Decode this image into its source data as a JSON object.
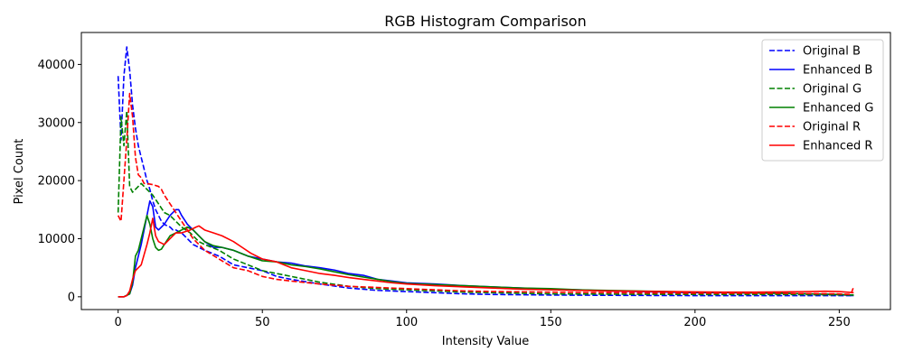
{
  "chart_data": {
    "type": "line",
    "title": "RGB Histogram Comparison",
    "xlabel": "Intensity Value",
    "ylabel": "Pixel Count",
    "xlim": [
      -12.75,
      267.75
    ],
    "ylim": [
      -2200,
      45500
    ],
    "x_ticks": [
      0,
      50,
      100,
      150,
      200,
      250
    ],
    "y_ticks": [
      0,
      10000,
      20000,
      30000,
      40000
    ],
    "grid": false,
    "legend_position": "top-right",
    "series": [
      {
        "name": "Original B",
        "color": "#0000ff",
        "style": "dashed",
        "points": [
          [
            0,
            38000
          ],
          [
            1,
            27000
          ],
          [
            2,
            38000
          ],
          [
            3,
            43000
          ],
          [
            4,
            39000
          ],
          [
            5,
            33000
          ],
          [
            6,
            29000
          ],
          [
            7,
            26000
          ],
          [
            8,
            24000
          ],
          [
            9,
            22000
          ],
          [
            10,
            20000
          ],
          [
            11,
            18500
          ],
          [
            12,
            16500
          ],
          [
            13,
            15000
          ],
          [
            14,
            14000
          ],
          [
            15,
            13000
          ],
          [
            16,
            12500
          ],
          [
            17,
            12200
          ],
          [
            18,
            12000
          ],
          [
            19,
            11500
          ],
          [
            20,
            11500
          ],
          [
            22,
            11000
          ],
          [
            24,
            10000
          ],
          [
            26,
            9000
          ],
          [
            28,
            8500
          ],
          [
            30,
            8000
          ],
          [
            35,
            7000
          ],
          [
            40,
            5500
          ],
          [
            45,
            5000
          ],
          [
            50,
            4500
          ],
          [
            55,
            3500
          ],
          [
            60,
            3000
          ],
          [
            70,
            2200
          ],
          [
            80,
            1500
          ],
          [
            90,
            1100
          ],
          [
            100,
            900
          ],
          [
            110,
            700
          ],
          [
            120,
            500
          ],
          [
            130,
            400
          ],
          [
            150,
            300
          ],
          [
            170,
            250
          ],
          [
            200,
            200
          ],
          [
            230,
            200
          ],
          [
            255,
            200
          ]
        ]
      },
      {
        "name": "Enhanced B",
        "color": "#0000ff",
        "style": "solid",
        "points": [
          [
            0,
            0
          ],
          [
            2,
            0
          ],
          [
            4,
            500
          ],
          [
            5,
            2000
          ],
          [
            6,
            5000
          ],
          [
            8,
            9000
          ],
          [
            10,
            14000
          ],
          [
            11,
            16500
          ],
          [
            12,
            15500
          ],
          [
            13,
            12000
          ],
          [
            14,
            11500
          ],
          [
            16,
            12500
          ],
          [
            18,
            14000
          ],
          [
            20,
            15000
          ],
          [
            21,
            15000
          ],
          [
            22,
            14000
          ],
          [
            24,
            12500
          ],
          [
            26,
            11500
          ],
          [
            28,
            10500
          ],
          [
            30,
            9500
          ],
          [
            33,
            8500
          ],
          [
            36,
            8500
          ],
          [
            40,
            8000
          ],
          [
            45,
            7000
          ],
          [
            50,
            6500
          ],
          [
            55,
            6000
          ],
          [
            60,
            5800
          ],
          [
            65,
            5300
          ],
          [
            70,
            5000
          ],
          [
            75,
            4600
          ],
          [
            80,
            4000
          ],
          [
            85,
            3700
          ],
          [
            90,
            3000
          ],
          [
            95,
            2700
          ],
          [
            100,
            2400
          ],
          [
            110,
            2200
          ],
          [
            120,
            1900
          ],
          [
            130,
            1700
          ],
          [
            140,
            1500
          ],
          [
            150,
            1300
          ],
          [
            160,
            1200
          ],
          [
            170,
            1000
          ],
          [
            180,
            900
          ],
          [
            190,
            800
          ],
          [
            200,
            700
          ],
          [
            210,
            700
          ],
          [
            220,
            650
          ],
          [
            230,
            600
          ],
          [
            240,
            500
          ],
          [
            250,
            400
          ],
          [
            255,
            200
          ]
        ]
      },
      {
        "name": "Original G",
        "color": "#008000",
        "style": "dashed",
        "points": [
          [
            0,
            14500
          ],
          [
            1,
            31000
          ],
          [
            2,
            26000
          ],
          [
            3,
            32000
          ],
          [
            4,
            19000
          ],
          [
            5,
            18000
          ],
          [
            6,
            18500
          ],
          [
            7,
            19000
          ],
          [
            8,
            19500
          ],
          [
            9,
            19000
          ],
          [
            10,
            18500
          ],
          [
            12,
            17500
          ],
          [
            14,
            16000
          ],
          [
            16,
            14500
          ],
          [
            18,
            14000
          ],
          [
            20,
            13000
          ],
          [
            22,
            12000
          ],
          [
            25,
            11000
          ],
          [
            28,
            9500
          ],
          [
            30,
            9000
          ],
          [
            35,
            8000
          ],
          [
            40,
            6500
          ],
          [
            45,
            5500
          ],
          [
            50,
            4500
          ],
          [
            55,
            4000
          ],
          [
            60,
            3500
          ],
          [
            70,
            2500
          ],
          [
            80,
            1800
          ],
          [
            90,
            1400
          ],
          [
            100,
            1200
          ],
          [
            110,
            1000
          ],
          [
            120,
            800
          ],
          [
            130,
            700
          ],
          [
            150,
            500
          ],
          [
            170,
            450
          ],
          [
            200,
            400
          ],
          [
            230,
            400
          ],
          [
            255,
            300
          ]
        ]
      },
      {
        "name": "Enhanced G",
        "color": "#008000",
        "style": "solid",
        "points": [
          [
            0,
            0
          ],
          [
            2,
            0
          ],
          [
            4,
            500
          ],
          [
            5,
            2500
          ],
          [
            6,
            7000
          ],
          [
            7,
            8000
          ],
          [
            8,
            10000
          ],
          [
            9,
            12000
          ],
          [
            10,
            14000
          ],
          [
            11,
            12500
          ],
          [
            12,
            10000
          ],
          [
            13,
            8500
          ],
          [
            14,
            8000
          ],
          [
            15,
            8200
          ],
          [
            16,
            9000
          ],
          [
            18,
            10500
          ],
          [
            20,
            11000
          ],
          [
            22,
            11500
          ],
          [
            24,
            12000
          ],
          [
            26,
            11500
          ],
          [
            28,
            10500
          ],
          [
            30,
            9500
          ],
          [
            33,
            8800
          ],
          [
            36,
            8500
          ],
          [
            40,
            8000
          ],
          [
            45,
            7000
          ],
          [
            50,
            6200
          ],
          [
            55,
            6000
          ],
          [
            60,
            5500
          ],
          [
            65,
            5200
          ],
          [
            70,
            4800
          ],
          [
            75,
            4300
          ],
          [
            80,
            3800
          ],
          [
            85,
            3400
          ],
          [
            90,
            3000
          ],
          [
            95,
            2600
          ],
          [
            100,
            2300
          ],
          [
            110,
            2100
          ],
          [
            120,
            1900
          ],
          [
            130,
            1700
          ],
          [
            140,
            1500
          ],
          [
            150,
            1400
          ],
          [
            160,
            1200
          ],
          [
            170,
            1100
          ],
          [
            180,
            1000
          ],
          [
            190,
            900
          ],
          [
            200,
            800
          ],
          [
            210,
            750
          ],
          [
            220,
            650
          ],
          [
            230,
            600
          ],
          [
            240,
            500
          ],
          [
            250,
            400
          ],
          [
            255,
            300
          ]
        ]
      },
      {
        "name": "Original R",
        "color": "#ff0000",
        "style": "dashed",
        "points": [
          [
            0,
            14000
          ],
          [
            1,
            13000
          ],
          [
            2,
            20000
          ],
          [
            3,
            27000
          ],
          [
            4,
            35000
          ],
          [
            5,
            31000
          ],
          [
            6,
            24000
          ],
          [
            7,
            21000
          ],
          [
            8,
            20500
          ],
          [
            9,
            19500
          ],
          [
            10,
            19500
          ],
          [
            12,
            19300
          ],
          [
            14,
            19000
          ],
          [
            15,
            18500
          ],
          [
            16,
            17500
          ],
          [
            18,
            16000
          ],
          [
            20,
            14500
          ],
          [
            22,
            13000
          ],
          [
            24,
            11500
          ],
          [
            26,
            10000
          ],
          [
            28,
            9000
          ],
          [
            30,
            8000
          ],
          [
            35,
            6500
          ],
          [
            40,
            5000
          ],
          [
            45,
            4500
          ],
          [
            50,
            3500
          ],
          [
            55,
            3000
          ],
          [
            60,
            2700
          ],
          [
            70,
            2200
          ],
          [
            80,
            1800
          ],
          [
            90,
            1600
          ],
          [
            100,
            1400
          ],
          [
            110,
            1200
          ],
          [
            120,
            1000
          ],
          [
            130,
            900
          ],
          [
            150,
            800
          ],
          [
            170,
            700
          ],
          [
            200,
            600
          ],
          [
            230,
            600
          ],
          [
            250,
            500
          ],
          [
            254,
            400
          ],
          [
            255,
            1700
          ]
        ]
      },
      {
        "name": "Enhanced R",
        "color": "#ff0000",
        "style": "solid",
        "points": [
          [
            0,
            0
          ],
          [
            2,
            0
          ],
          [
            3,
            200
          ],
          [
            4,
            1000
          ],
          [
            5,
            3000
          ],
          [
            6,
            4500
          ],
          [
            8,
            5500
          ],
          [
            10,
            9000
          ],
          [
            11,
            11000
          ],
          [
            12,
            13500
          ],
          [
            13,
            10500
          ],
          [
            14,
            9500
          ],
          [
            16,
            9000
          ],
          [
            18,
            10000
          ],
          [
            20,
            11000
          ],
          [
            22,
            11000
          ],
          [
            25,
            11500
          ],
          [
            27,
            12000
          ],
          [
            28,
            12200
          ],
          [
            30,
            11500
          ],
          [
            33,
            11000
          ],
          [
            36,
            10500
          ],
          [
            40,
            9500
          ],
          [
            43,
            8500
          ],
          [
            46,
            7500
          ],
          [
            50,
            6500
          ],
          [
            55,
            6000
          ],
          [
            60,
            5000
          ],
          [
            65,
            4500
          ],
          [
            70,
            4000
          ],
          [
            75,
            3700
          ],
          [
            80,
            3300
          ],
          [
            85,
            3000
          ],
          [
            90,
            2700
          ],
          [
            95,
            2400
          ],
          [
            100,
            2200
          ],
          [
            110,
            1900
          ],
          [
            120,
            1700
          ],
          [
            130,
            1500
          ],
          [
            140,
            1300
          ],
          [
            150,
            1200
          ],
          [
            160,
            1100
          ],
          [
            170,
            1000
          ],
          [
            180,
            950
          ],
          [
            190,
            900
          ],
          [
            200,
            850
          ],
          [
            210,
            800
          ],
          [
            220,
            800
          ],
          [
            230,
            850
          ],
          [
            240,
            900
          ],
          [
            245,
            950
          ],
          [
            250,
            900
          ],
          [
            255,
            700
          ]
        ]
      }
    ]
  }
}
